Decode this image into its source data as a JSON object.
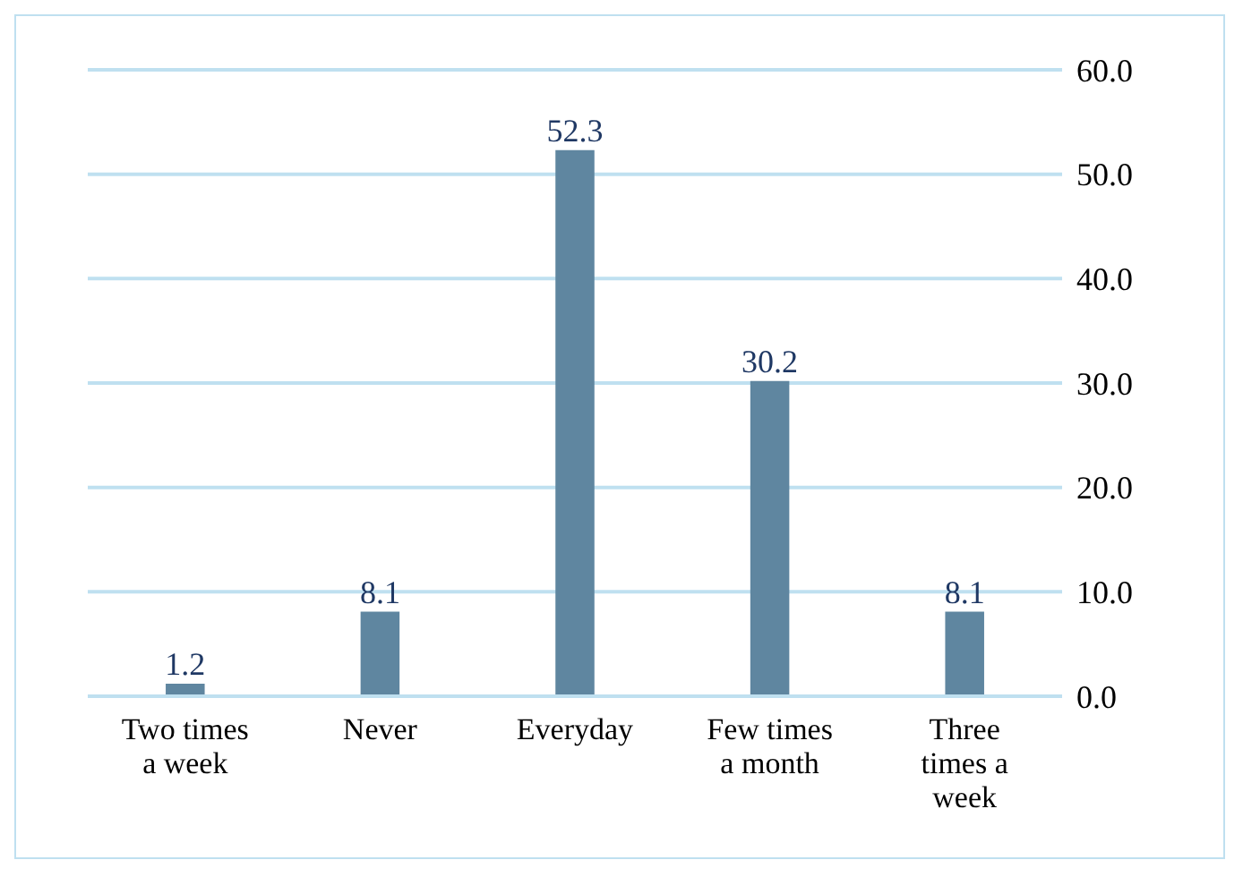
{
  "chart_data": {
    "type": "bar",
    "categories": [
      "Two times a week",
      "Never",
      "Everyday",
      "Few times a month",
      "Three times a week"
    ],
    "values": [
      1.2,
      8.1,
      52.3,
      30.2,
      8.1
    ],
    "color": "#5f86a0",
    "ylim": [
      0,
      60
    ],
    "yticks": [
      {
        "value": 0,
        "label": "0.0"
      },
      {
        "value": 10,
        "label": "10.0"
      },
      {
        "value": 20,
        "label": "20.0"
      },
      {
        "value": 30,
        "label": "30.0"
      },
      {
        "value": 40,
        "label": "40.0"
      },
      {
        "value": 50,
        "label": "50.0"
      },
      {
        "value": 60,
        "label": "60.0"
      }
    ],
    "grid": "y",
    "data_labels": true
  }
}
